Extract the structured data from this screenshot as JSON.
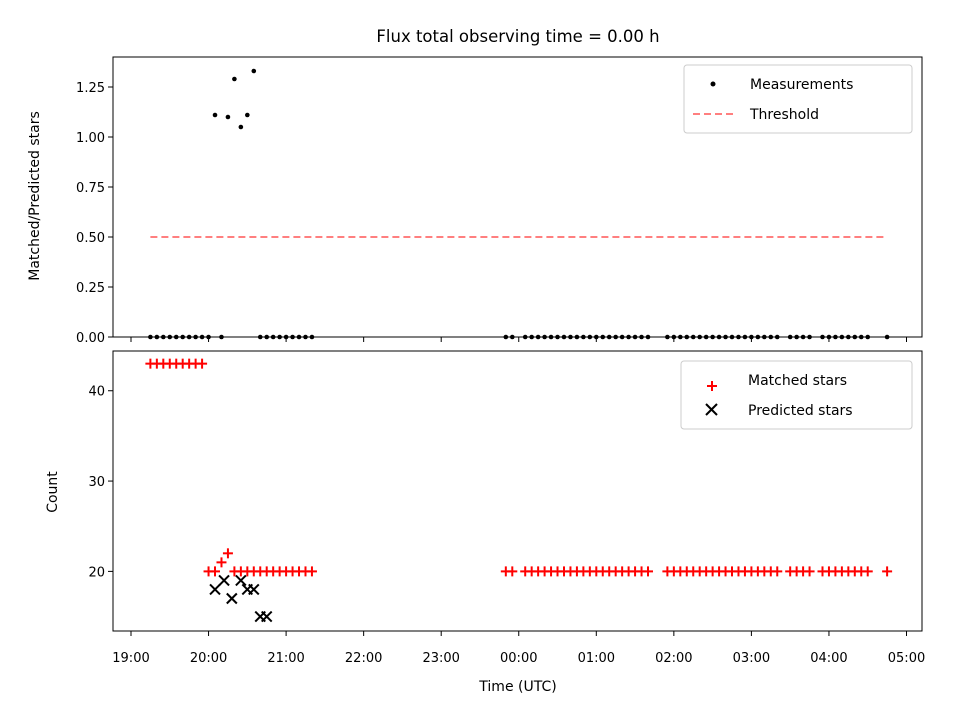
{
  "chart_data": [
    {
      "type": "scatter",
      "title": "Flux total observing time = 0.00 h",
      "ylabel": "Matched/Predicted stars",
      "xlabel": "",
      "ylim": [
        0,
        1.4
      ],
      "yticks": [
        "0.00",
        "0.25",
        "0.50",
        "0.75",
        "1.00",
        "1.25"
      ],
      "legend_position": "top-right",
      "series": [
        {
          "name": "Measurements",
          "marker": "dot",
          "color": "#000000",
          "x": [
            "19:15",
            "19:20",
            "19:25",
            "19:30",
            "19:35",
            "19:40",
            "19:45",
            "19:50",
            "19:55",
            "20:00",
            "20:05",
            "20:10",
            "20:15",
            "20:20",
            "20:25",
            "20:30",
            "20:35",
            "20:40",
            "20:45",
            "20:50",
            "20:55",
            "21:00",
            "21:05",
            "21:10",
            "21:15",
            "21:20",
            "23:50",
            "23:55",
            "00:05",
            "00:10",
            "00:15",
            "00:20",
            "00:25",
            "00:30",
            "00:35",
            "00:40",
            "00:45",
            "00:50",
            "00:55",
            "01:00",
            "01:05",
            "01:10",
            "01:15",
            "01:20",
            "01:25",
            "01:30",
            "01:35",
            "01:40",
            "01:55",
            "02:00",
            "02:05",
            "02:10",
            "02:15",
            "02:20",
            "02:25",
            "02:30",
            "02:35",
            "02:40",
            "02:45",
            "02:50",
            "02:55",
            "03:00",
            "03:05",
            "03:10",
            "03:15",
            "03:20",
            "03:30",
            "03:35",
            "03:40",
            "03:45",
            "03:55",
            "04:00",
            "04:05",
            "04:10",
            "04:15",
            "04:20",
            "04:25",
            "04:30",
            "04:45"
          ],
          "y": [
            0,
            0,
            0,
            0,
            0,
            0,
            0,
            0,
            0,
            0,
            1.11,
            0,
            1.1,
            1.29,
            1.05,
            1.11,
            1.33,
            0,
            0,
            0,
            0,
            0,
            0,
            0,
            0,
            0,
            0,
            0,
            0,
            0,
            0,
            0,
            0,
            0,
            0,
            0,
            0,
            0,
            0,
            0,
            0,
            0,
            0,
            0,
            0,
            0,
            0,
            0,
            0,
            0,
            0,
            0,
            0,
            0,
            0,
            0,
            0,
            0,
            0,
            0,
            0,
            0,
            0,
            0,
            0,
            0,
            0,
            0,
            0,
            0,
            0,
            0,
            0,
            0,
            0,
            0,
            0,
            0,
            0
          ]
        },
        {
          "name": "Threshold",
          "type": "line",
          "style": "dashed",
          "color": "#ff7f7f",
          "x": [
            "19:15",
            "04:45"
          ],
          "y": [
            0.5,
            0.5
          ]
        }
      ]
    },
    {
      "type": "scatter",
      "title": "",
      "ylabel": "Count",
      "xlabel": "Time (UTC)",
      "ylim": [
        13.4,
        44.4
      ],
      "yticks": [
        "20",
        "30",
        "40"
      ],
      "xticks": [
        "19:00",
        "20:00",
        "21:00",
        "22:00",
        "23:00",
        "00:00",
        "01:00",
        "02:00",
        "03:00",
        "04:00",
        "05:00"
      ],
      "legend_position": "top-right",
      "series": [
        {
          "name": "Matched stars",
          "marker": "plus",
          "color": "#ff0000",
          "x": [
            "19:15",
            "19:20",
            "19:25",
            "19:30",
            "19:35",
            "19:40",
            "19:45",
            "19:50",
            "19:55",
            "20:00",
            "20:05",
            "20:10",
            "20:15",
            "20:20",
            "20:25",
            "20:30",
            "20:35",
            "20:40",
            "20:45",
            "20:50",
            "20:55",
            "21:00",
            "21:05",
            "21:10",
            "21:15",
            "21:20",
            "23:50",
            "23:55",
            "00:05",
            "00:10",
            "00:15",
            "00:20",
            "00:25",
            "00:30",
            "00:35",
            "00:40",
            "00:45",
            "00:50",
            "00:55",
            "01:00",
            "01:05",
            "01:10",
            "01:15",
            "01:20",
            "01:25",
            "01:30",
            "01:35",
            "01:40",
            "01:55",
            "02:00",
            "02:05",
            "02:10",
            "02:15",
            "02:20",
            "02:25",
            "02:30",
            "02:35",
            "02:40",
            "02:45",
            "02:50",
            "02:55",
            "03:00",
            "03:05",
            "03:10",
            "03:15",
            "03:20",
            "03:30",
            "03:35",
            "03:40",
            "03:45",
            "03:55",
            "04:00",
            "04:05",
            "04:10",
            "04:15",
            "04:20",
            "04:25",
            "04:30",
            "04:45"
          ],
          "y": [
            43,
            43,
            43,
            43,
            43,
            43,
            43,
            43,
            43,
            20,
            20,
            21,
            22,
            20,
            20,
            20,
            20,
            20,
            20,
            20,
            20,
            20,
            20,
            20,
            20,
            20,
            20,
            20,
            20,
            20,
            20,
            20,
            20,
            20,
            20,
            20,
            20,
            20,
            20,
            20,
            20,
            20,
            20,
            20,
            20,
            20,
            20,
            20,
            20,
            20,
            20,
            20,
            20,
            20,
            20,
            20,
            20,
            20,
            20,
            20,
            20,
            20,
            20,
            20,
            20,
            20,
            20,
            20,
            20,
            20,
            20,
            20,
            20,
            20,
            20,
            20,
            20,
            20,
            20
          ]
        },
        {
          "name": "Predicted stars",
          "marker": "x",
          "color": "#000000",
          "x": [
            "20:05",
            "20:12",
            "20:18",
            "20:25",
            "20:30",
            "20:35",
            "20:40",
            "20:45"
          ],
          "y": [
            18,
            19,
            17,
            19,
            18,
            18,
            15,
            15
          ]
        }
      ]
    }
  ]
}
